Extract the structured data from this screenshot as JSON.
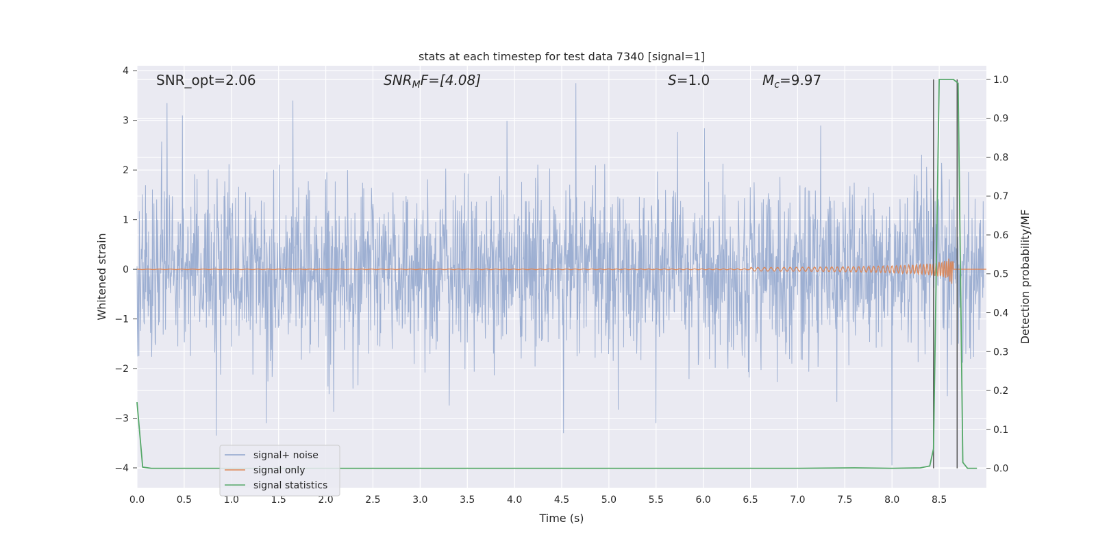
{
  "chart_data": {
    "type": "line",
    "title": "stats at each timestep for test data 7340 [signal=1]",
    "xlabel": "Time (s)",
    "ylabel": "Whitened strain",
    "y2label": "Detection probability/MF",
    "xlim": [
      0.0,
      9.0
    ],
    "ylim": [
      -4.4,
      4.1
    ],
    "y2lim": [
      -0.05,
      1.035
    ],
    "xticks": [
      "0.0",
      "0.5",
      "1.0",
      "1.5",
      "2.0",
      "2.5",
      "3.0",
      "3.5",
      "4.0",
      "4.5",
      "5.0",
      "5.5",
      "6.0",
      "6.5",
      "7.0",
      "7.5",
      "8.0",
      "8.5"
    ],
    "yticks": [
      "4",
      "3",
      "2",
      "1",
      "0",
      "−1",
      "−2",
      "−3",
      "−4"
    ],
    "y2ticks": [
      "1.0",
      "0.9",
      "0.8",
      "0.7",
      "0.6",
      "0.5",
      "0.4",
      "0.3",
      "0.2",
      "0.1",
      "0.0"
    ],
    "grid": true,
    "legend_position": "lower-left",
    "annotations": {
      "snr_opt": "SNR_opt=2.06",
      "snr_mf_main": "SNR",
      "snr_mf_sub": "M",
      "snr_mf_rest": "F=[4.08]",
      "s_main": "S",
      "s_rest": "=1.0",
      "mc_main": "M",
      "mc_sub": "c",
      "mc_rest": "=9.97"
    },
    "series": [
      {
        "name": "signal+ noise",
        "color": "#8fa4cc",
        "description_values": "noise band roughly ±1.5 with spikes to ~±3.5",
        "peaks": {
          "x": [
            0.32,
            0.48,
            0.84,
            1.37,
            4.52,
            4.65,
            5.5,
            8.0
          ],
          "y": [
            3.35,
            3.1,
            -3.35,
            -3.1,
            -3.3,
            3.75,
            -3.1,
            -3.95
          ]
        }
      },
      {
        "name": "signal only",
        "color": "#dd8452",
        "chirp_start_time": 6.5,
        "merger_time": 8.65,
        "peak_amplitude": 0.35
      },
      {
        "name": "signal statistics",
        "color": "#55a868",
        "axis": "right",
        "x": [
          0.0,
          0.06,
          0.15,
          1.0,
          2.0,
          3.0,
          4.0,
          5.0,
          6.0,
          7.0,
          7.6,
          8.0,
          8.3,
          8.4,
          8.44,
          8.5,
          8.54,
          8.65,
          8.7,
          8.75,
          8.8,
          8.9
        ],
        "y": [
          0.17,
          0.003,
          0.0,
          0.0,
          0.0,
          0.0,
          0.0,
          0.0,
          0.0,
          0.0,
          0.001,
          0.0,
          0.001,
          0.006,
          0.05,
          1.0,
          1.0,
          1.0,
          0.99,
          0.015,
          0.0,
          0.0
        ]
      }
    ],
    "vertical_lines": {
      "color": "#555555",
      "x": [
        8.44,
        8.69
      ],
      "y2_top": 1.0,
      "y2_bottom": 0.0
    }
  }
}
